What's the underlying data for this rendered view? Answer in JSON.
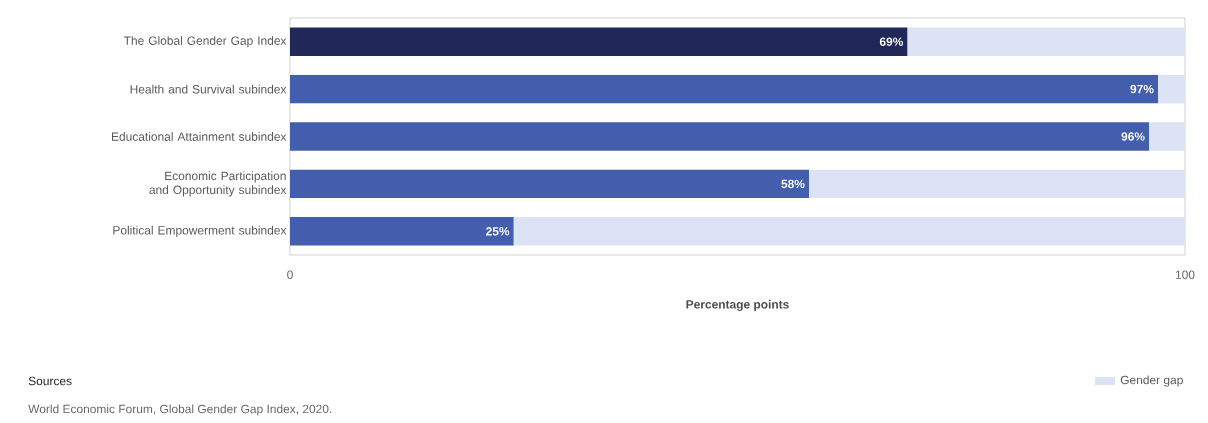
{
  "chart_data": {
    "type": "bar",
    "orientation": "horizontal",
    "stacked": true,
    "xlabel": "Percentage points",
    "categories": [
      "The Global Gender Gap Index",
      "Health and Survival subindex",
      "Educational Attainment subindex",
      "Economic Participation and Opportunity subindex",
      "Political Empowerment subindex"
    ],
    "xlim": [
      0,
      100
    ],
    "xticks": [
      0,
      100
    ],
    "legend": "bottom right",
    "series": [
      {
        "colors": [
          "#1f2858",
          "#425eac",
          "#425eac",
          "#425eac",
          "#425eac"
        ],
        "values": [
          69,
          97,
          96,
          58,
          25
        ],
        "value_labels": [
          "69%",
          "97%",
          "96%",
          "58%",
          "25%"
        ]
      },
      {
        "name": "Gender gap",
        "color": "#dbe3f4",
        "values": [
          31,
          3,
          4,
          42,
          75
        ]
      }
    ],
    "annotations": [
      "Sources",
      "World Economic Forum, Global Gender Gap Index, 2020."
    ]
  }
}
